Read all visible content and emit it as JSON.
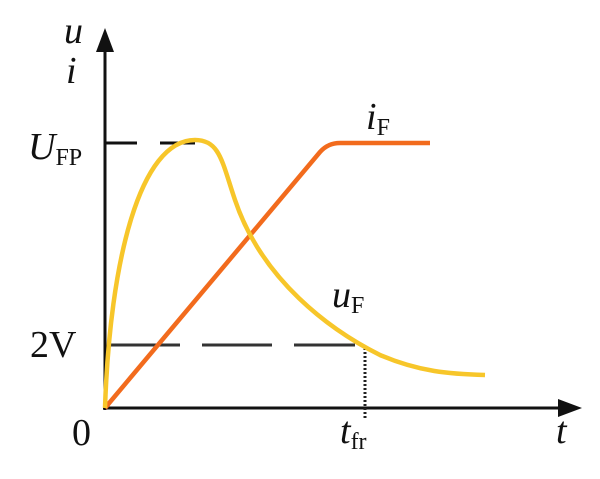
{
  "labels": {
    "y_axis_top": "u",
    "y_axis_bottom": "i",
    "x_axis": "t",
    "origin": "0",
    "ufp_main": "U",
    "ufp_sub": "FP",
    "two_volt": "2V",
    "tfr_main": "t",
    "tfr_sub": "fr",
    "if_main": "i",
    "if_sub": "F",
    "uf_main": "u",
    "uf_sub": "F"
  },
  "colors": {
    "current_curve": "#f26b1d",
    "voltage_curve": "#f7c62a",
    "axes": "#111111"
  }
}
